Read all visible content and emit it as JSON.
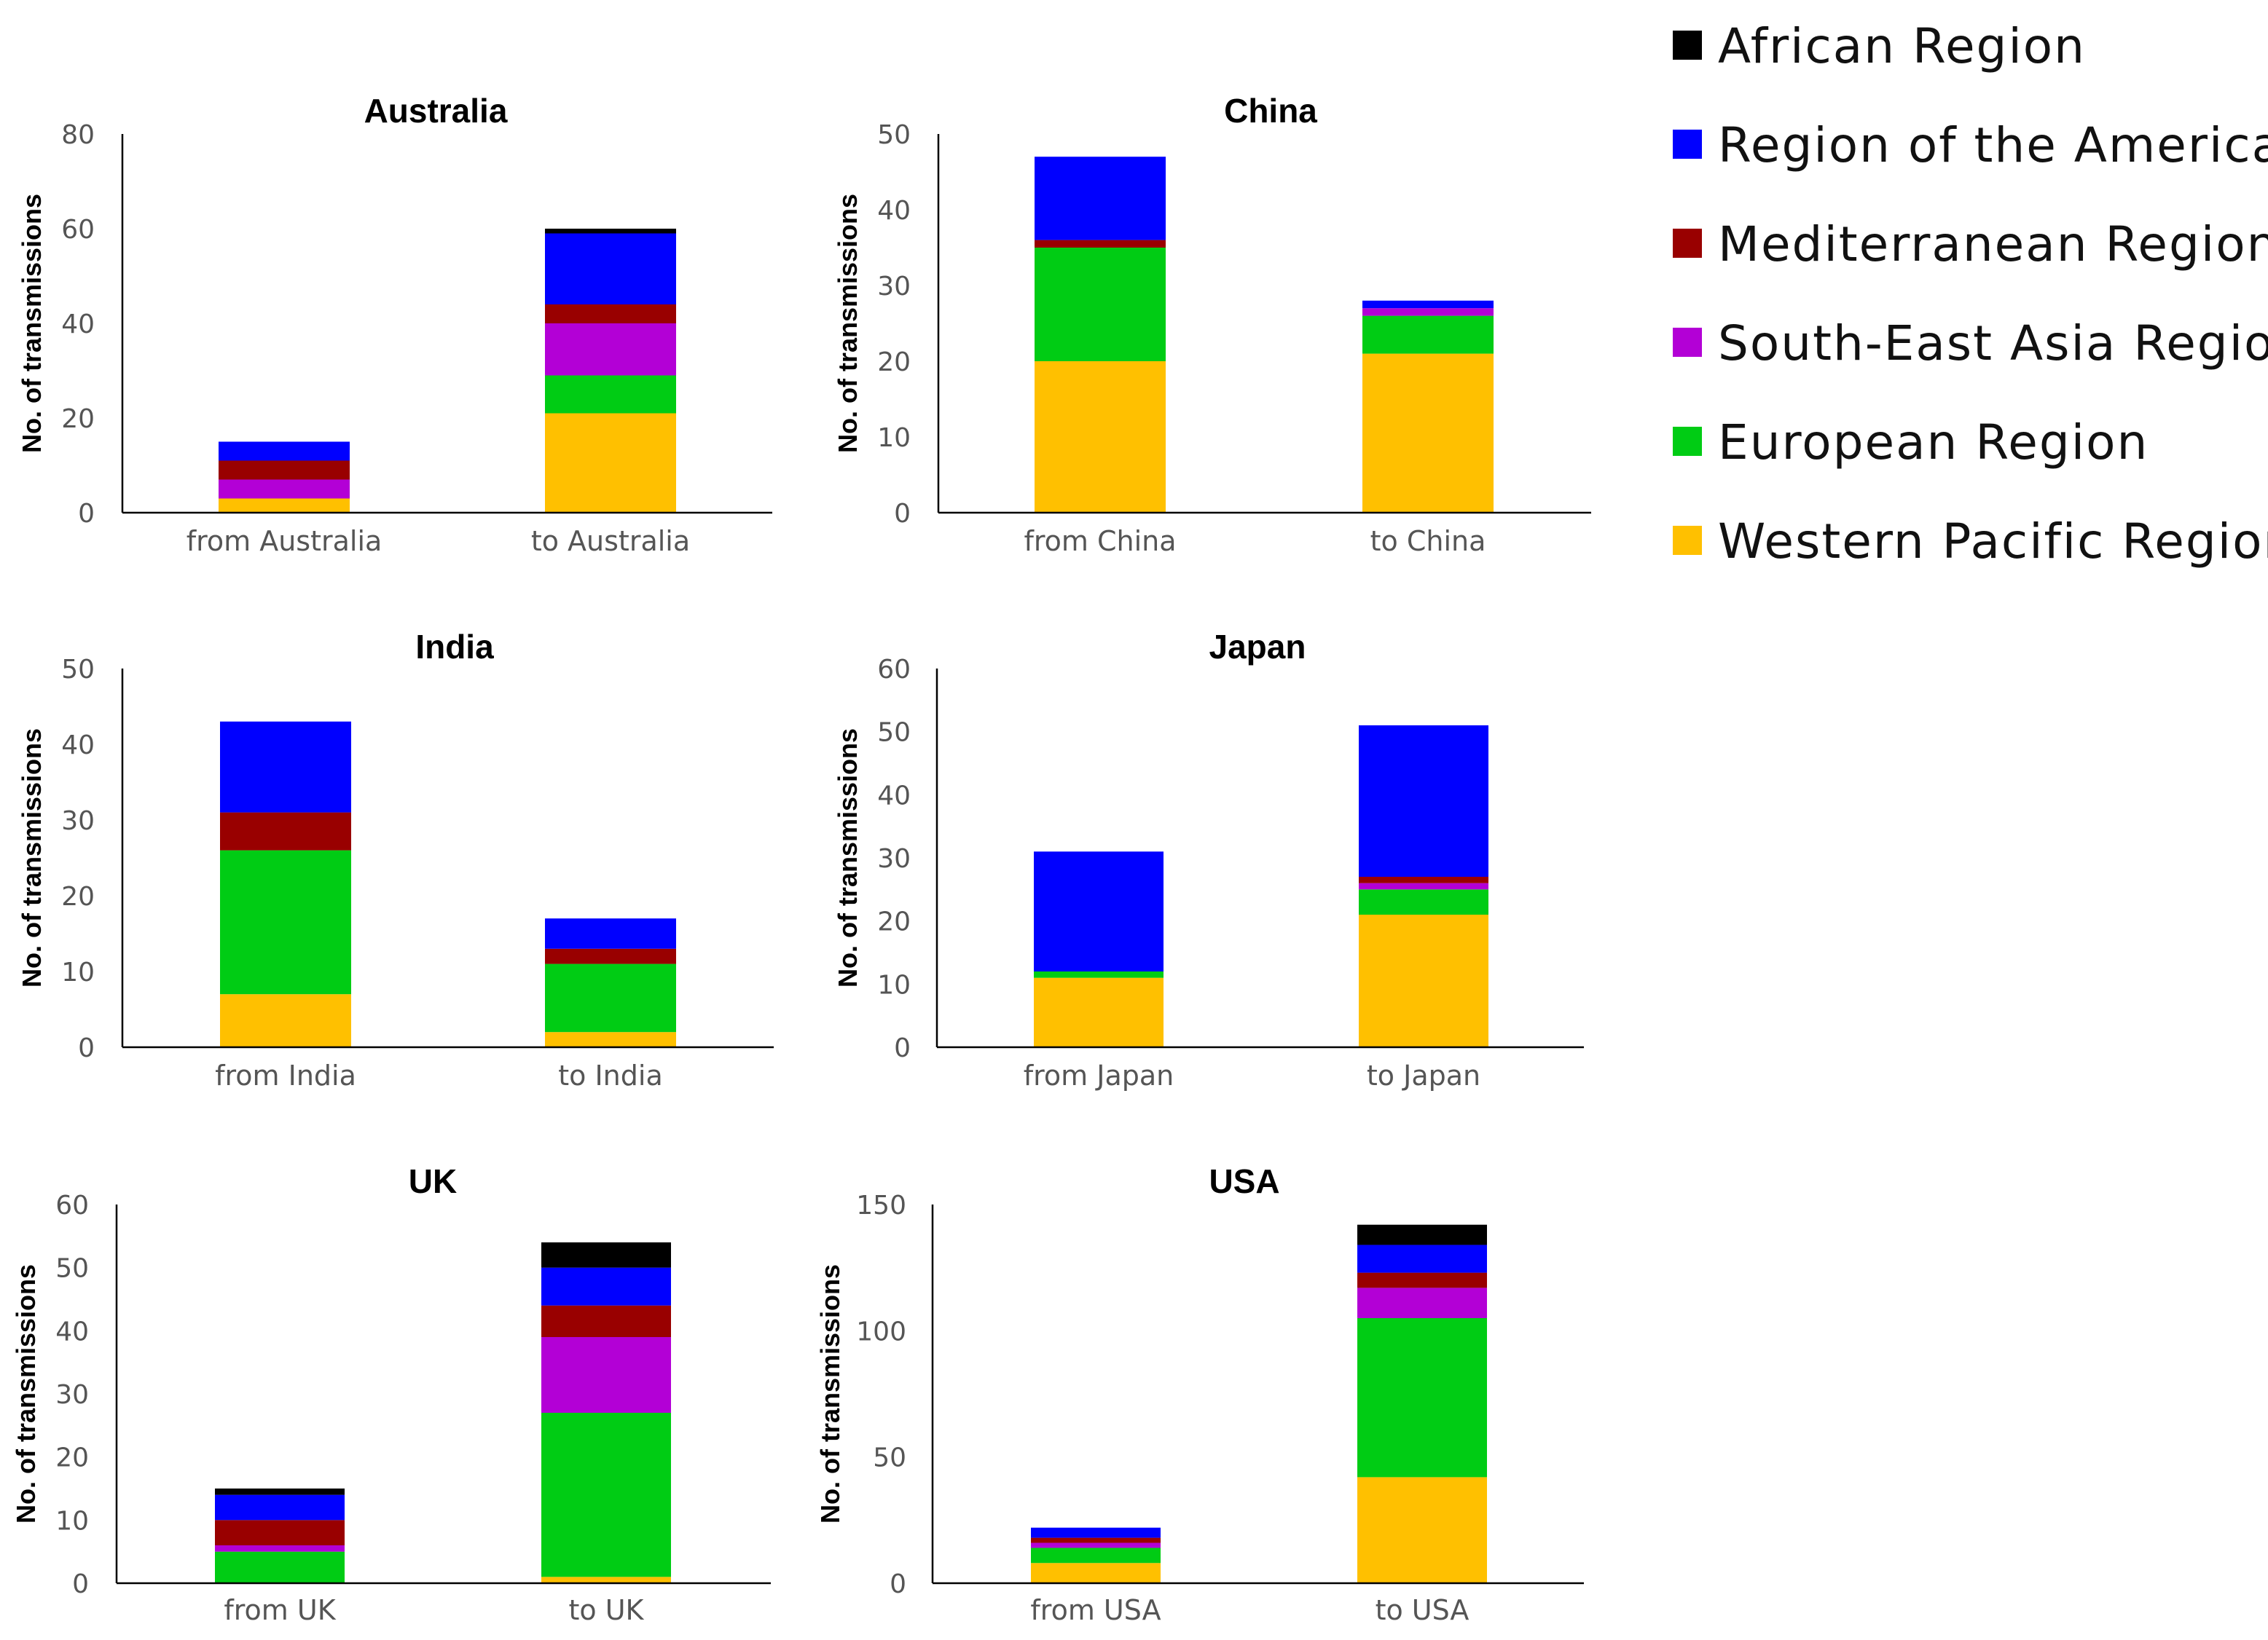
{
  "chart_data": {
    "type": "bar",
    "stacked": true,
    "legend_position": "top-right",
    "legend": [
      {
        "name": "African Region",
        "color": "#000000"
      },
      {
        "name": "Region of the Americas",
        "color": "#0000ff"
      },
      {
        "name": "Mediterranean Region",
        "color": "#990000"
      },
      {
        "name": "South-East Asia Region",
        "color": "#b300d6"
      },
      {
        "name": "European Region",
        "color": "#00cc14"
      },
      {
        "name": "Western Pacific Region",
        "color": "#ffc000"
      }
    ],
    "stack_order_bottom_to_top": [
      "Western Pacific Region",
      "European Region",
      "South-East Asia Region",
      "Mediterranean Region",
      "Region of the Americas",
      "African Region"
    ],
    "panels": [
      {
        "title": "Australia",
        "ylabel": "No. of transmissions",
        "ylim": [
          0,
          80
        ],
        "yticks": [
          0,
          20,
          40,
          60,
          80
        ],
        "categories": [
          "from Australia",
          "to Australia"
        ],
        "series": [
          {
            "name": "Western Pacific Region",
            "values": [
              3,
              21
            ]
          },
          {
            "name": "European Region",
            "values": [
              0,
              8
            ]
          },
          {
            "name": "South-East Asia Region",
            "values": [
              4,
              11
            ]
          },
          {
            "name": "Mediterranean Region",
            "values": [
              4,
              4
            ]
          },
          {
            "name": "Region of the Americas",
            "values": [
              4,
              15
            ]
          },
          {
            "name": "African Region",
            "values": [
              0,
              1
            ]
          }
        ]
      },
      {
        "title": "China",
        "ylabel": "No. of transmissions",
        "ylim": [
          0,
          50
        ],
        "yticks": [
          0,
          10,
          20,
          30,
          40,
          50
        ],
        "categories": [
          "from China",
          "to China"
        ],
        "series": [
          {
            "name": "Western Pacific Region",
            "values": [
              20,
              21
            ]
          },
          {
            "name": "European Region",
            "values": [
              15,
              5
            ]
          },
          {
            "name": "South-East Asia Region",
            "values": [
              0,
              1
            ]
          },
          {
            "name": "Mediterranean Region",
            "values": [
              1,
              0
            ]
          },
          {
            "name": "Region of the Americas",
            "values": [
              11,
              1
            ]
          },
          {
            "name": "African Region",
            "values": [
              0,
              0
            ]
          }
        ]
      },
      {
        "title": "India",
        "ylabel": "No. of transmissions",
        "ylim": [
          0,
          50
        ],
        "yticks": [
          0,
          10,
          20,
          30,
          40,
          50
        ],
        "categories": [
          "from India",
          "to India"
        ],
        "series": [
          {
            "name": "Western Pacific Region",
            "values": [
              7,
              2
            ]
          },
          {
            "name": "European Region",
            "values": [
              19,
              9
            ]
          },
          {
            "name": "South-East Asia Region",
            "values": [
              0,
              0
            ]
          },
          {
            "name": "Mediterranean Region",
            "values": [
              5,
              2
            ]
          },
          {
            "name": "Region of the Americas",
            "values": [
              12,
              4
            ]
          },
          {
            "name": "African Region",
            "values": [
              0,
              0
            ]
          }
        ]
      },
      {
        "title": "Japan",
        "ylabel": "No. of transmissions",
        "ylim": [
          0,
          60
        ],
        "yticks": [
          0,
          10,
          20,
          30,
          40,
          50,
          60
        ],
        "categories": [
          "from Japan",
          "to Japan"
        ],
        "series": [
          {
            "name": "Western Pacific Region",
            "values": [
              11,
              21
            ]
          },
          {
            "name": "European Region",
            "values": [
              1,
              4
            ]
          },
          {
            "name": "South-East Asia Region",
            "values": [
              0,
              1
            ]
          },
          {
            "name": "Mediterranean Region",
            "values": [
              0,
              1
            ]
          },
          {
            "name": "Region of the Americas",
            "values": [
              19,
              24
            ]
          },
          {
            "name": "African Region",
            "values": [
              0,
              0
            ]
          }
        ]
      },
      {
        "title": "UK",
        "ylabel": "No. of transmissions",
        "ylim": [
          0,
          60
        ],
        "yticks": [
          0,
          10,
          20,
          30,
          40,
          50,
          60
        ],
        "categories": [
          "from UK",
          "to UK"
        ],
        "series": [
          {
            "name": "Western Pacific Region",
            "values": [
              0,
              1
            ]
          },
          {
            "name": "European Region",
            "values": [
              5,
              26
            ]
          },
          {
            "name": "South-East Asia Region",
            "values": [
              1,
              12
            ]
          },
          {
            "name": "Mediterranean Region",
            "values": [
              4,
              5
            ]
          },
          {
            "name": "Region of the Americas",
            "values": [
              4,
              6
            ]
          },
          {
            "name": "African Region",
            "values": [
              1,
              4
            ]
          }
        ]
      },
      {
        "title": "USA",
        "ylabel": "No. of transmissions",
        "ylim": [
          0,
          150
        ],
        "yticks": [
          0,
          50,
          100,
          150
        ],
        "categories": [
          "from USA",
          "to USA"
        ],
        "series": [
          {
            "name": "Western Pacific Region",
            "values": [
              8,
              42
            ]
          },
          {
            "name": "European Region",
            "values": [
              6,
              63
            ]
          },
          {
            "name": "South-East Asia Region",
            "values": [
              2,
              12
            ]
          },
          {
            "name": "Mediterranean Region",
            "values": [
              2,
              6
            ]
          },
          {
            "name": "Region of the Americas",
            "values": [
              4,
              11
            ]
          },
          {
            "name": "African Region",
            "values": [
              0,
              8
            ]
          }
        ]
      }
    ]
  }
}
